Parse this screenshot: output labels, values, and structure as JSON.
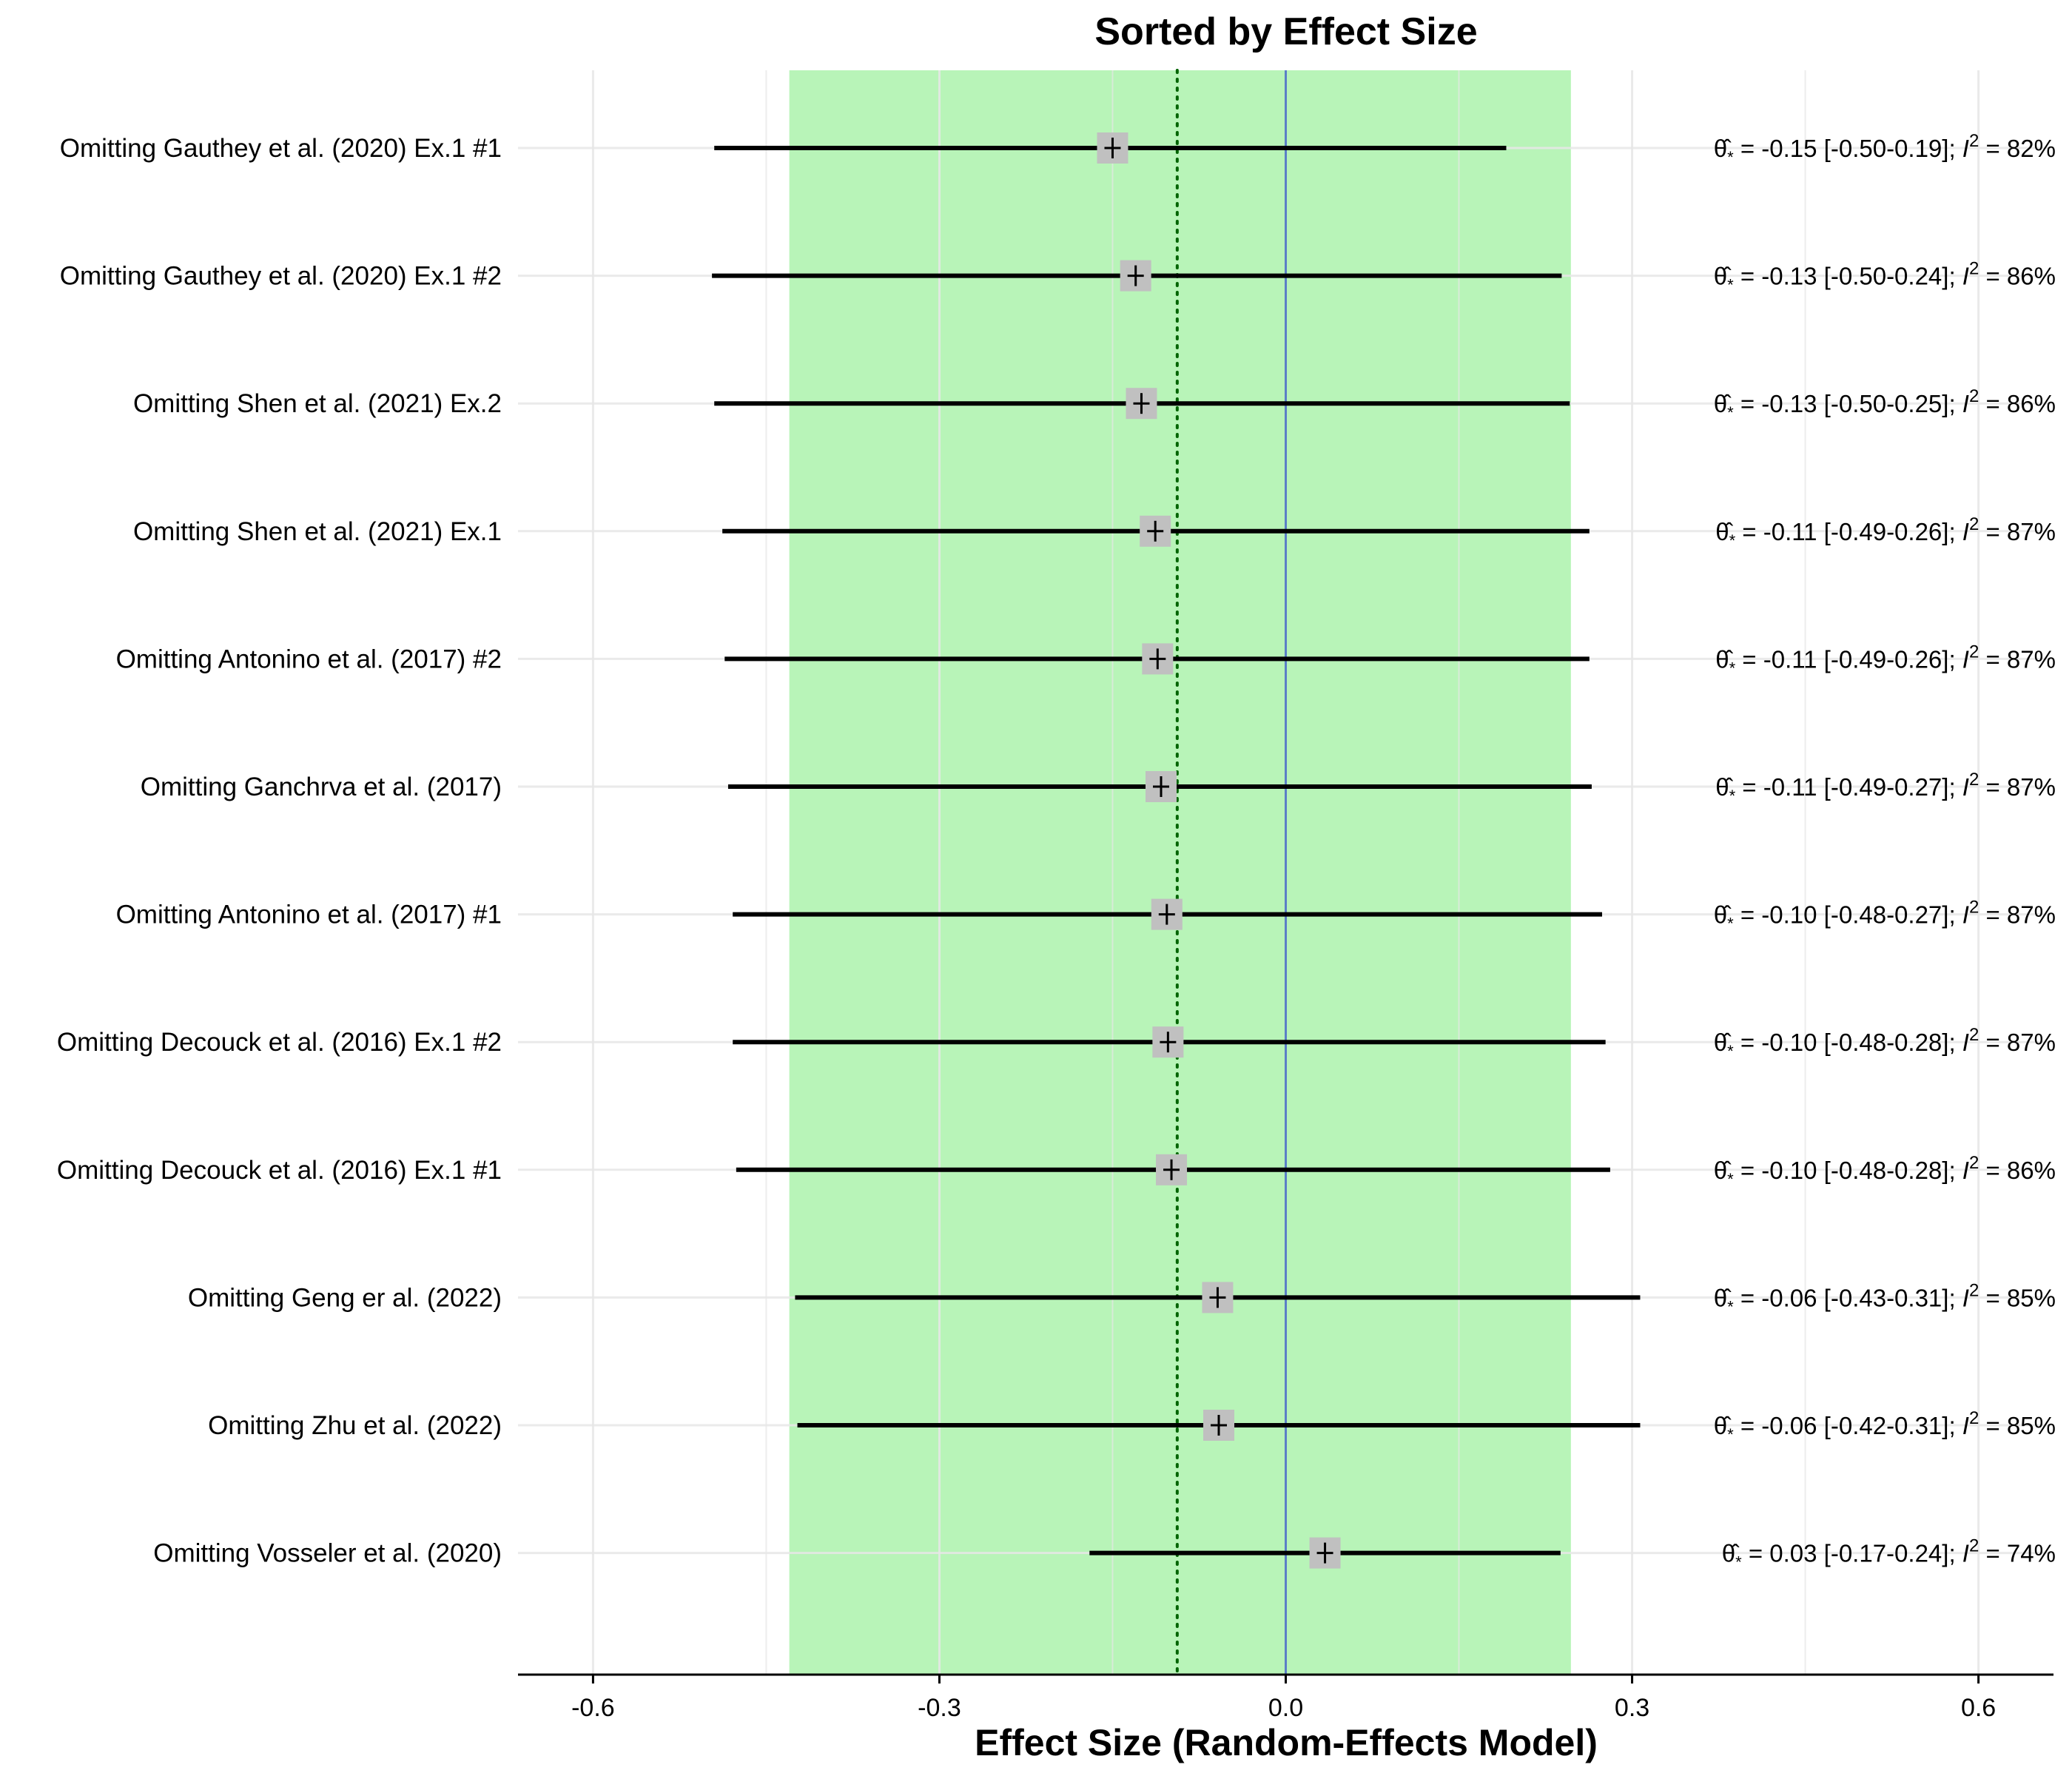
{
  "chart_data": {
    "type": "forest",
    "title": "Sorted by Effect Size",
    "xlabel": "Effect Size (Random-Effects Model)",
    "xlim": [
      -0.665,
      0.665
    ],
    "x_ticks": [
      -0.6,
      -0.3,
      0.0,
      0.3,
      0.6
    ],
    "x_tick_labels": [
      "-0.6",
      "-0.3",
      "0.0",
      "0.3",
      "0.6"
    ],
    "minor_gridlines": [
      -0.45,
      -0.15,
      0.15,
      0.45
    ],
    "shaded_interval": [
      -0.43,
      0.247
    ],
    "pooled_estimate": -0.094,
    "reference_line": 0.0,
    "colors": {
      "shaded_interval": "#b8f4b8",
      "reference_line": "#5b7fc7",
      "pooled_line": "#006400",
      "marker_box": "#c0c0c0",
      "ci_line": "#000000",
      "gridline": "#e6e6e6"
    },
    "rows": [
      {
        "label": "Omitting Gauthey et al. (2020) Ex.1 #1",
        "estimate": -0.15,
        "ci_low": -0.495,
        "ci_high": 0.191,
        "annotation": " = -0.15 [-0.50-0.19]; ",
        "i2": " = 82%"
      },
      {
        "label": "Omitting Gauthey et al. (2020) Ex.1 #2",
        "estimate": -0.13,
        "ci_low": -0.497,
        "ci_high": 0.239,
        "annotation": " = -0.13 [-0.50-0.24]; ",
        "i2": " = 86%"
      },
      {
        "label": "Omitting Shen et al. (2021) Ex.2",
        "estimate": -0.125,
        "ci_low": -0.495,
        "ci_high": 0.246,
        "annotation": " = -0.13 [-0.50-0.25]; ",
        "i2": " = 86%"
      },
      {
        "label": "Omitting Shen et al. (2021) Ex.1",
        "estimate": -0.113,
        "ci_low": -0.488,
        "ci_high": 0.263,
        "annotation": " = -0.11 [-0.49-0.26]; ",
        "i2": " = 87%"
      },
      {
        "label": "Omitting Antonino et al. (2017) #2",
        "estimate": -0.111,
        "ci_low": -0.486,
        "ci_high": 0.263,
        "annotation": " = -0.11 [-0.49-0.26]; ",
        "i2": " = 87%"
      },
      {
        "label": "Omitting Ganchrva et al. (2017)",
        "estimate": -0.108,
        "ci_low": -0.483,
        "ci_high": 0.265,
        "annotation": " = -0.11 [-0.49-0.27]; ",
        "i2": " = 87%"
      },
      {
        "label": "Omitting Antonino et al. (2017) #1",
        "estimate": -0.103,
        "ci_low": -0.479,
        "ci_high": 0.274,
        "annotation": " = -0.10 [-0.48-0.27]; ",
        "i2": " = 87%"
      },
      {
        "label": "Omitting Decouck et al. (2016) Ex.1 #2",
        "estimate": -0.102,
        "ci_low": -0.479,
        "ci_high": 0.277,
        "annotation": " = -0.10 [-0.48-0.28]; ",
        "i2": " = 87%"
      },
      {
        "label": "Omitting Decouck et al. (2016) Ex.1 #1",
        "estimate": -0.099,
        "ci_low": -0.476,
        "ci_high": 0.281,
        "annotation": " = -0.10 [-0.48-0.28]; ",
        "i2": " = 86%"
      },
      {
        "label": "Omitting Geng er al. (2022)",
        "estimate": -0.059,
        "ci_low": -0.425,
        "ci_high": 0.307,
        "annotation": " = -0.06 [-0.43-0.31]; ",
        "i2": " = 85%"
      },
      {
        "label": "Omitting Zhu et al. (2022)",
        "estimate": -0.058,
        "ci_low": -0.423,
        "ci_high": 0.307,
        "annotation": " = -0.06 [-0.42-0.31]; ",
        "i2": " = 85%"
      },
      {
        "label": "Omitting Vosseler et al. (2020)",
        "estimate": 0.034,
        "ci_low": -0.17,
        "ci_high": 0.238,
        "annotation": " =  0.03 [-0.17-0.24]; ",
        "i2": " = 74%"
      }
    ]
  }
}
